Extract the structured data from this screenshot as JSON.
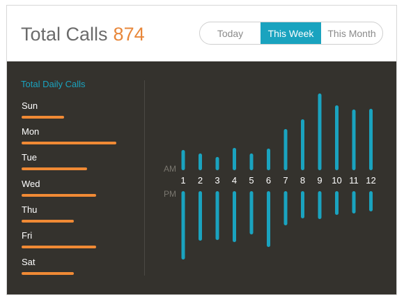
{
  "header": {
    "title": "Total Calls",
    "total": "874",
    "tabs": [
      {
        "label": "Today",
        "active": false
      },
      {
        "label": "This Week",
        "active": true
      },
      {
        "label": "This Month",
        "active": false
      }
    ]
  },
  "colors": {
    "accent": "#1aa3bf",
    "orange": "#f08a35",
    "panel": "#34322d"
  },
  "daily": {
    "title": "Total Daily Calls",
    "days": [
      {
        "label": "Sun",
        "fraction": 0.45
      },
      {
        "label": "Mon",
        "fraction": 1.0
      },
      {
        "label": "Tue",
        "fraction": 0.69
      },
      {
        "label": "Wed",
        "fraction": 0.79
      },
      {
        "label": "Thu",
        "fraction": 0.55
      },
      {
        "label": "Fri",
        "fraction": 0.79
      },
      {
        "label": "Sat",
        "fraction": 0.55
      }
    ]
  },
  "chart_data": {
    "type": "bar",
    "categories": [
      "1",
      "2",
      "3",
      "4",
      "5",
      "6",
      "7",
      "8",
      "9",
      "10",
      "11",
      "12"
    ],
    "series": [
      {
        "name": "AM",
        "values": [
          29,
          24,
          19,
          32,
          24,
          31,
          59,
          73,
          110,
          93,
          87,
          88
        ]
      },
      {
        "name": "PM",
        "values": [
          98,
          71,
          70,
          73,
          62,
          80,
          49,
          39,
          40,
          34,
          32,
          29
        ]
      }
    ],
    "labels": {
      "am": "AM",
      "pm": "PM"
    }
  }
}
